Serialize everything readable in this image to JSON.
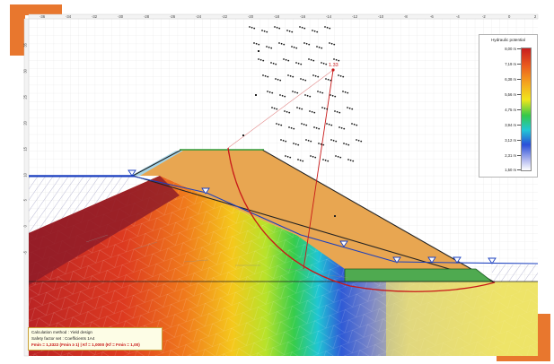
{
  "legend": {
    "title": "Hydraulic potential",
    "values": [
      "8,00 m",
      "7,19 m",
      "6,38 m",
      "5,56 m",
      "4,75 m",
      "3,94 m",
      "3,12 m",
      "2,31 m",
      "1,50 m"
    ]
  },
  "ruler": {
    "top_ticks": [
      "-36",
      "-34",
      "-32",
      "-30",
      "-28",
      "-26",
      "-24",
      "-22",
      "-20",
      "-18",
      "-16",
      "-14",
      "-12",
      "-10",
      "-8",
      "-6",
      "-4",
      "-2",
      "0",
      "2"
    ],
    "left_ticks": [
      "35",
      "30",
      "25",
      "20",
      "15",
      "10",
      "5",
      "0",
      "-5"
    ]
  },
  "slip_circle": {
    "factor_label": "1.33"
  },
  "info_box": {
    "line1": "Calculation method : Yield design",
    "line2": "Safety factor set : Coefficients 1A4",
    "line3": "Fmin = 1,3322 (Fmin ≥ 1)  |  Kf = 1,0000 (Kf = Fmin = 1,00)"
  },
  "colors": {
    "accent": "#e8772e",
    "embankment": "#e8a651",
    "water_level": "#1a3fbf",
    "slip_surface": "#c81818",
    "drain": "#4faa50",
    "riprap": "#a6d4e6"
  }
}
